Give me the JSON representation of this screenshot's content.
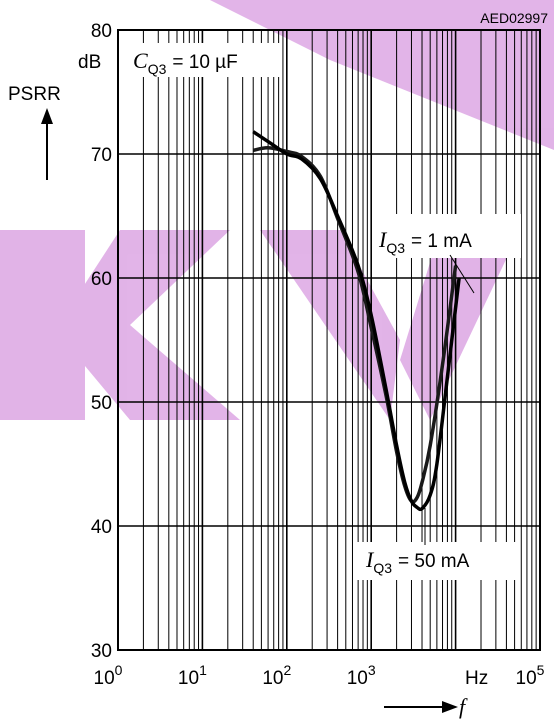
{
  "figure_code": "AED02997",
  "watermark": {
    "color": "#c56ad1",
    "opacity": 0.5
  },
  "chart_data": {
    "type": "line",
    "title": "",
    "xlabel": "f",
    "xunit": "Hz",
    "ylabel": "PSRR",
    "yunit": "dB",
    "x_scale": "log",
    "xlim": [
      1,
      100000
    ],
    "ylim": [
      30,
      80
    ],
    "yticks": [
      30,
      40,
      50,
      60,
      70,
      80
    ],
    "xtick_labels": [
      {
        "base": "10",
        "exp": "0"
      },
      {
        "base": "10",
        "exp": "1"
      },
      {
        "base": "10",
        "exp": "2"
      },
      {
        "base": "10",
        "exp": "3"
      },
      {
        "base": "10",
        "exp": "5"
      }
    ],
    "grid": true,
    "condition": {
      "symbol": "C",
      "subscript": "Q3",
      "value": "= 10 µF"
    },
    "series": [
      {
        "label_symbol": "I",
        "label_subscript": "Q3",
        "label_value": "= 1 mA",
        "color": "#1a1a1a",
        "x": [
          40,
          60,
          100,
          150,
          250,
          400,
          700,
          1000,
          1500,
          2000,
          2500,
          3000,
          3500,
          4000,
          5000,
          7000,
          10000
        ],
        "y": [
          70.3,
          70.5,
          70.2,
          69.8,
          68.2,
          64.8,
          60.5,
          56.0,
          50.5,
          46.0,
          43.2,
          42.0,
          42.3,
          43.5,
          46.5,
          53.0,
          61.0
        ]
      },
      {
        "label_symbol": "I",
        "label_subscript": "Q3",
        "label_value": "= 50 mA",
        "color": "#000000",
        "x": [
          40,
          60,
          100,
          150,
          250,
          400,
          700,
          1000,
          1500,
          2000,
          2500,
          3000,
          3500,
          4000,
          5000,
          6000,
          8000,
          11000
        ],
        "y": [
          71.8,
          71.0,
          70.0,
          69.6,
          68.0,
          65.0,
          61.0,
          57.0,
          51.0,
          46.5,
          43.5,
          42.0,
          41.5,
          41.4,
          42.5,
          45.0,
          52.0,
          60.0
        ]
      }
    ]
  }
}
